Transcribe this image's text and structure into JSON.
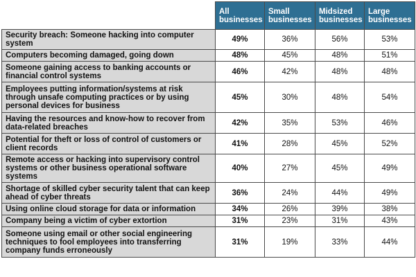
{
  "table": {
    "headers": [
      "",
      "All businesses",
      "Small businesses",
      "Midsized businesses",
      "Large businesses"
    ],
    "rows": [
      {
        "label": "Security breach: Someone hacking into computer system",
        "all": "49%",
        "small": "36%",
        "mid": "56%",
        "large": "53%"
      },
      {
        "label": "Computers becoming damaged, going down",
        "all": "48%",
        "small": "45%",
        "mid": "48%",
        "large": "51%"
      },
      {
        "label": "Someone gaining access to banking accounts or financial control systems",
        "all": "46%",
        "small": "42%",
        "mid": "48%",
        "large": "48%"
      },
      {
        "label": "Employees putting information/systems at risk through unsafe computing practices or by using personal devices for business",
        "all": "45%",
        "small": "30%",
        "mid": "48%",
        "large": "54%"
      },
      {
        "label": "Having the resources and know-how to recover from data-related breaches",
        "all": "42%",
        "small": "35%",
        "mid": "53%",
        "large": "46%"
      },
      {
        "label": "Potential for theft or loss of control of customers or client records",
        "all": "41%",
        "small": "28%",
        "mid": "45%",
        "large": "52%"
      },
      {
        "label": "Remote access or hacking into supervisory control systems or other business operational software systems",
        "all": "40%",
        "small": "27%",
        "mid": "45%",
        "large": "49%"
      },
      {
        "label": "Shortage of skilled cyber security talent that can keep ahead of cyber threats",
        "all": "36%",
        "small": "24%",
        "mid": "44%",
        "large": "49%"
      },
      {
        "label": "Using online cloud storage for data or information",
        "all": "34%",
        "small": "26%",
        "mid": "39%",
        "large": "38%"
      },
      {
        "label": "Company being a victim of cyber extortion",
        "all": "31%",
        "small": "23%",
        "mid": "31%",
        "large": "43%"
      },
      {
        "label": "Someone using email or other social engineering techniques to fool employees into transferring company funds erroneously",
        "all": "31%",
        "small": "19%",
        "mid": "33%",
        "large": "44%"
      }
    ]
  },
  "colors": {
    "header_bg": "#2e6f93",
    "label_bg": "#d8d8d8"
  }
}
